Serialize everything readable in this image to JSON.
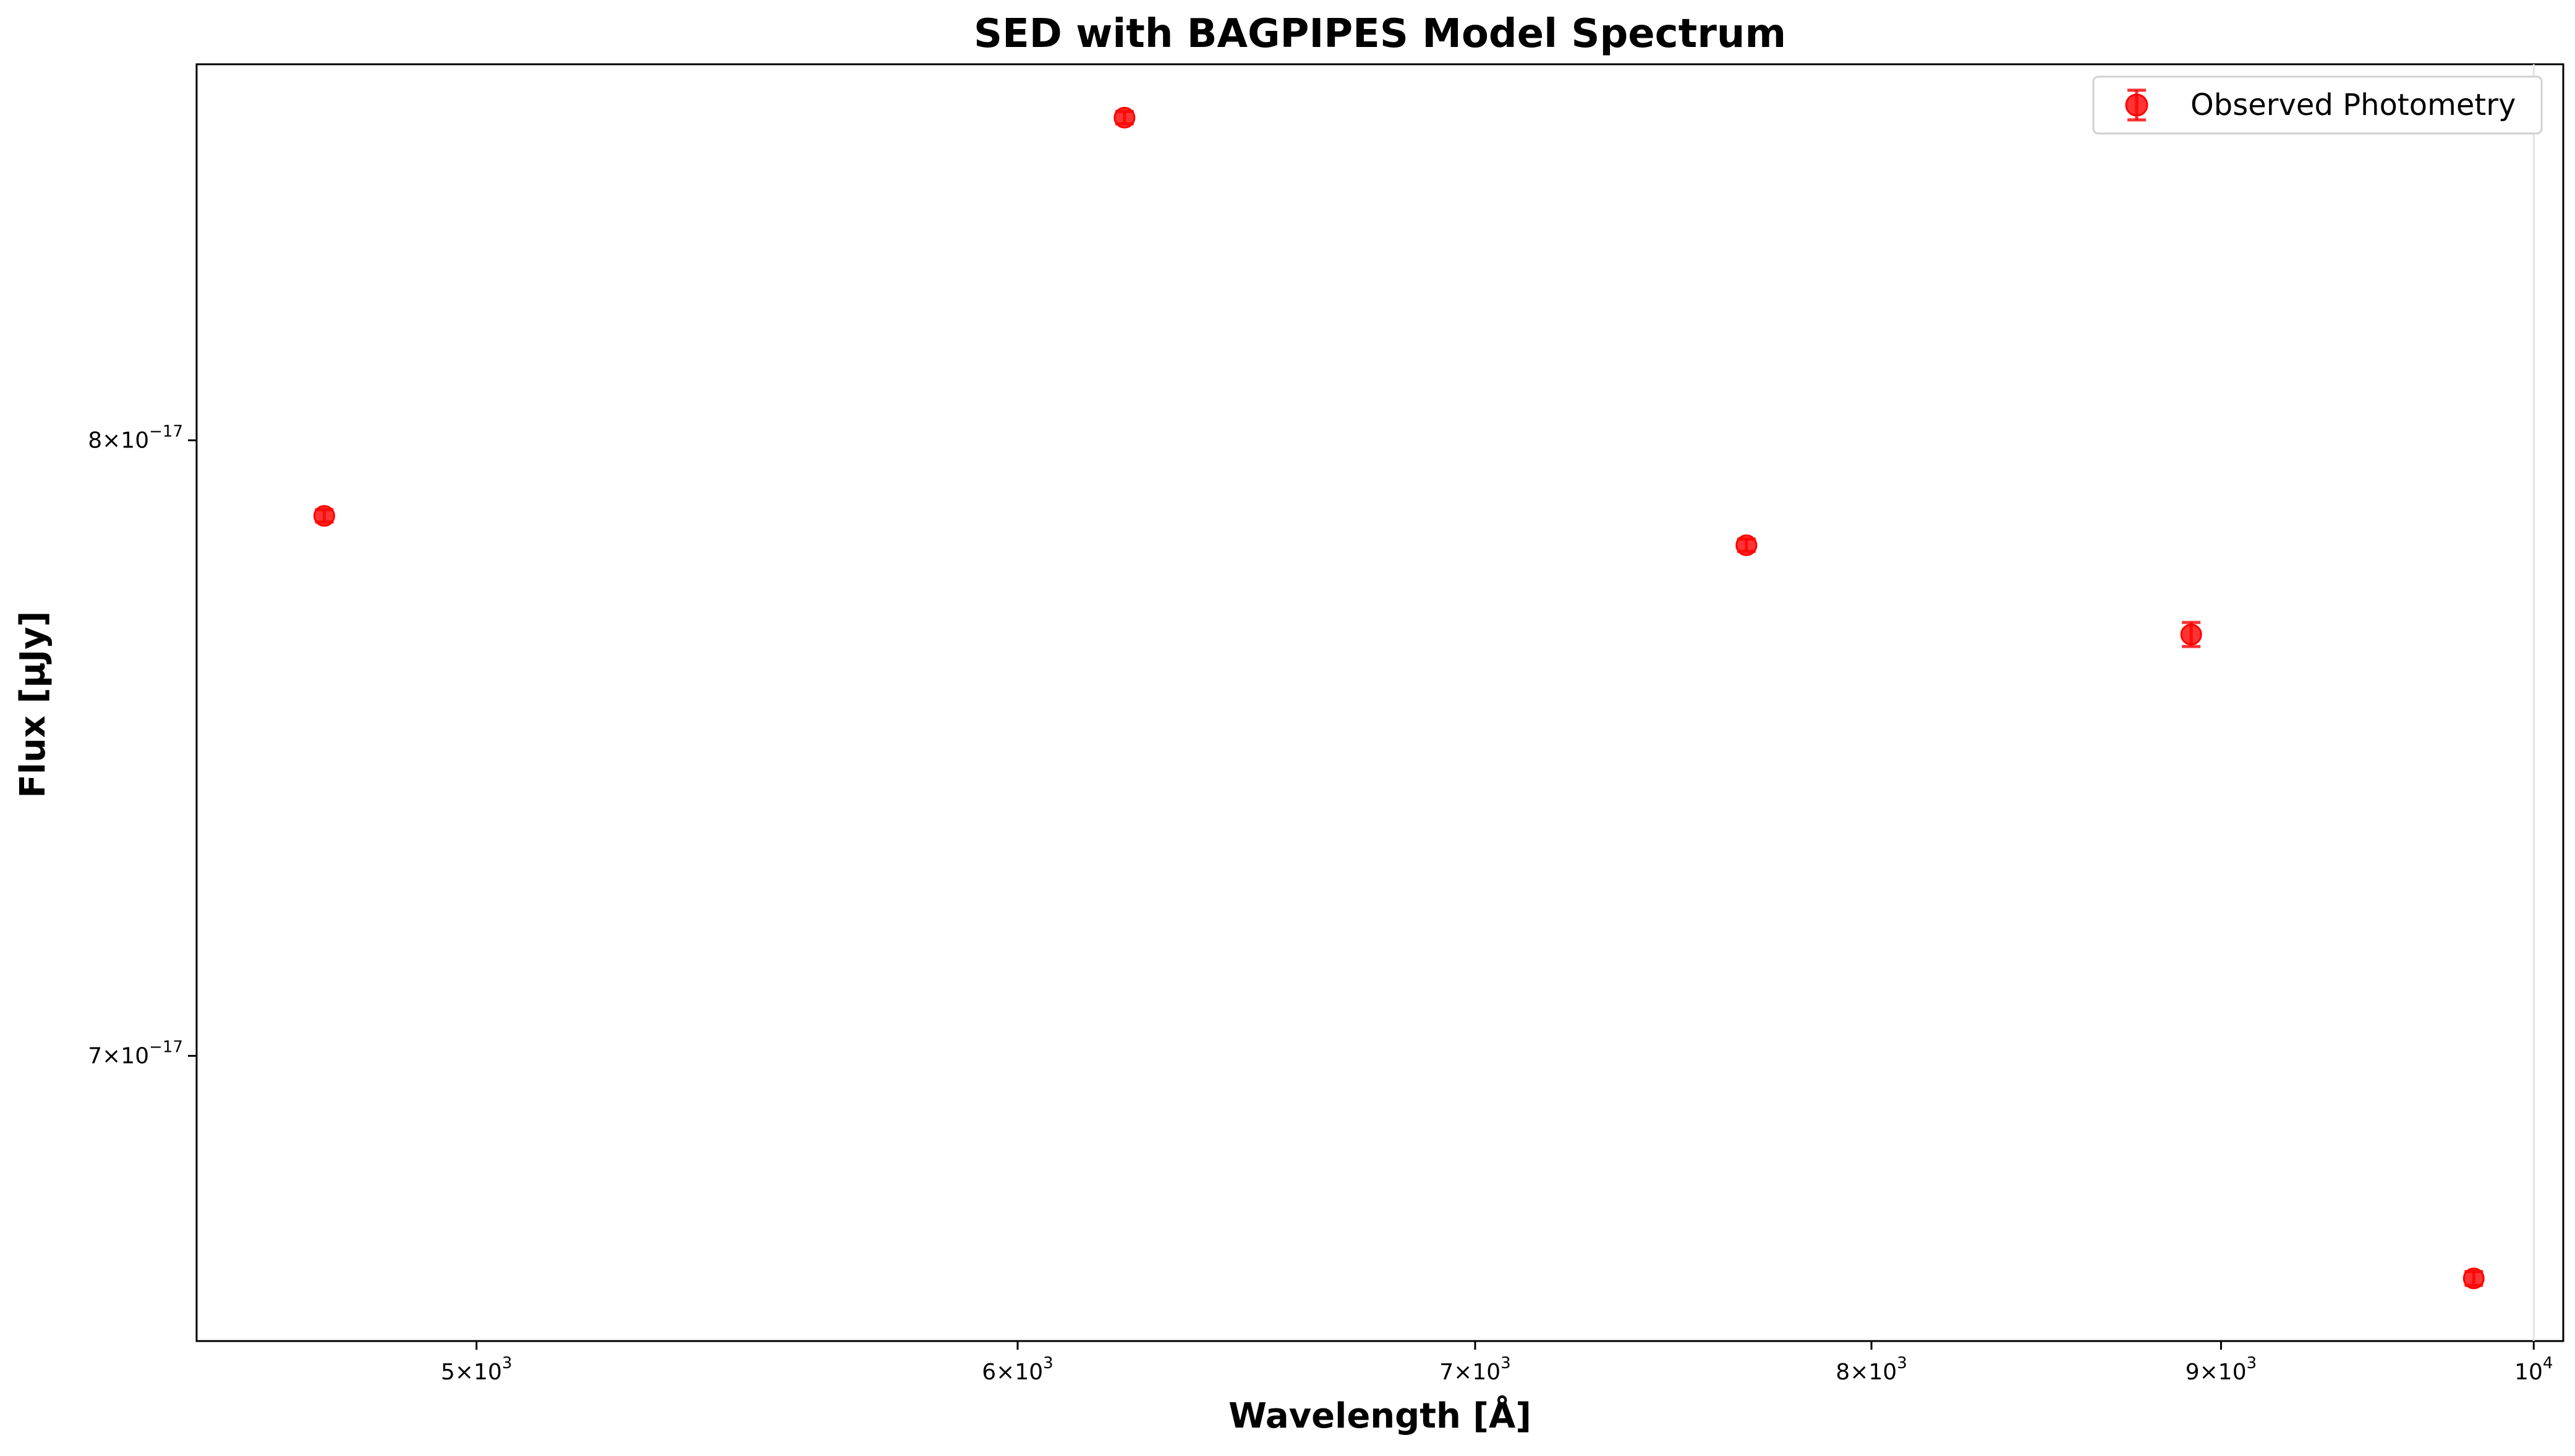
{
  "chart_data": {
    "type": "scatter",
    "title": "SED with BAGPIPES Model Spectrum",
    "xlabel": "Wavelength [Å]",
    "ylabel": "Flux [µJy]",
    "xscale": "log",
    "yscale": "log",
    "xlim": [
      4550,
      10100
    ],
    "ylim": [
      6.58e-17,
      8.68e-17
    ],
    "grid": false,
    "legend": {
      "placement": "top-right",
      "entries": [
        "Observed Photometry"
      ]
    },
    "x_ticks": [
      {
        "value": 5000,
        "label": "5 × 10^3",
        "mantissa": "5",
        "base": "10",
        "exponent": "3"
      },
      {
        "value": 6000,
        "label": "6 × 10^3",
        "mantissa": "6",
        "base": "10",
        "exponent": "3"
      },
      {
        "value": 7000,
        "label": "7 × 10^3",
        "mantissa": "7",
        "base": "10",
        "exponent": "3"
      },
      {
        "value": 8000,
        "label": "8 × 10^3",
        "mantissa": "8",
        "base": "10",
        "exponent": "3"
      },
      {
        "value": 9000,
        "label": "9 × 10^3",
        "mantissa": "9",
        "base": "10",
        "exponent": "3"
      },
      {
        "value": 10000,
        "label": "10^4",
        "mantissa": "",
        "base": "10",
        "exponent": "4"
      }
    ],
    "y_ticks": [
      {
        "value": 8e-17,
        "label": "8 × 10^-17",
        "mantissa": "8",
        "base": "10",
        "exponent": "−17"
      },
      {
        "value": 7e-17,
        "label": "7 × 10^-17",
        "mantissa": "7",
        "base": "10",
        "exponent": "−17"
      }
    ],
    "series": [
      {
        "name": "Observed Photometry",
        "color": "#ff0000",
        "marker": "circle",
        "x": [
          4750,
          6220,
          7670,
          8910,
          9800
        ],
        "y": [
          7.87e-17,
          8.58e-17,
          7.82e-17,
          7.67e-17,
          6.67e-17
        ],
        "yerr": [
          1e-19,
          1e-19,
          1e-19,
          2e-19,
          1e-19
        ]
      }
    ]
  }
}
